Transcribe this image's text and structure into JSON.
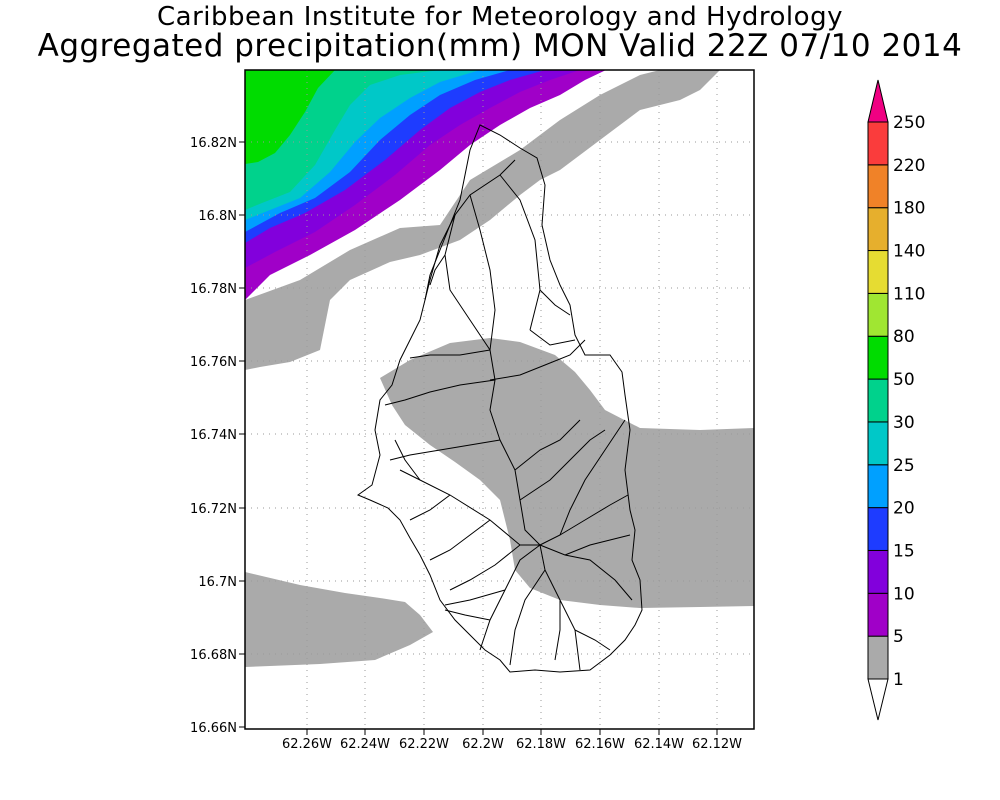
{
  "titles": {
    "line1": "Caribbean Institute for Meteorology and Hydrology",
    "line2": "Aggregated precipitation(mm) MON Valid 22Z 07/10 2014"
  },
  "map": {
    "lat_labels": [
      "16.82N",
      "16.8N",
      "16.78N",
      "16.76N",
      "16.74N",
      "16.72N",
      "16.7N",
      "16.68N",
      "16.66N"
    ],
    "lon_labels": [
      "62.26W",
      "62.24W",
      "62.22W",
      "62.2W",
      "62.18W",
      "62.16W",
      "62.14W",
      "62.12W"
    ],
    "lat_range": [
      16.66,
      16.835
    ],
    "lon_range": [
      62.275,
      62.102
    ],
    "grid": true
  },
  "colorbar": {
    "levels": [
      "1",
      "5",
      "10",
      "15",
      "20",
      "25",
      "30",
      "50",
      "80",
      "110",
      "140",
      "180",
      "220",
      "250"
    ],
    "colors": [
      "#aaaaaa",
      "#a000c8",
      "#8200dc",
      "#1e3cff",
      "#00a0ff",
      "#00c8c8",
      "#00d28c",
      "#00dc00",
      "#a0e632",
      "#e6dc32",
      "#e6af2d",
      "#f08228",
      "#fa3c3c",
      "#f00082"
    ]
  }
}
